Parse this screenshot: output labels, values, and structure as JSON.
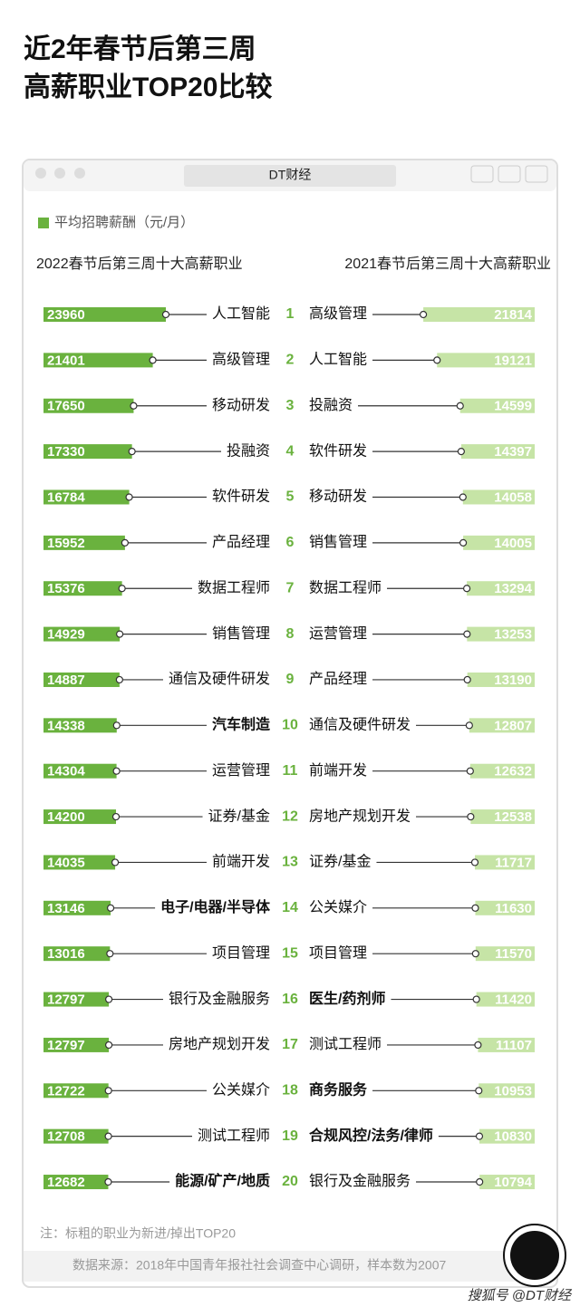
{
  "chart_data": {
    "type": "butterfly",
    "title": [
      "近2年春节后第三周",
      "高薪职业TOP20比较"
    ],
    "window_title": "DT财经",
    "legend": "平均招聘薪酬（元/月）",
    "categories": [
      "1",
      "2",
      "3",
      "4",
      "5",
      "6",
      "7",
      "8",
      "9",
      "10",
      "11",
      "12",
      "13",
      "14",
      "15",
      "16",
      "17",
      "18",
      "19",
      "20"
    ],
    "series": [
      {
        "name": "2022春节后第三周十大高薪职业",
        "color": "#6ab23e",
        "labels": [
          "人工智能",
          "高级管理",
          "移动研发",
          "投融资",
          "软件研发",
          "产品经理",
          "数据工程师",
          "销售管理",
          "通信及硬件研发",
          "汽车制造",
          "运营管理",
          "证券/基金",
          "前端开发",
          "电子/电器/半导体",
          "项目管理",
          "银行及金融服务",
          "房地产规划开发",
          "公关媒介",
          "测试工程师",
          "能源/矿产/地质"
        ],
        "values": [
          23960,
          21401,
          17650,
          17330,
          16784,
          15952,
          15376,
          14929,
          14887,
          14338,
          14304,
          14200,
          14035,
          13146,
          13016,
          12797,
          12797,
          12722,
          12708,
          12682
        ],
        "bold": [
          false,
          false,
          false,
          false,
          false,
          false,
          false,
          false,
          false,
          true,
          false,
          false,
          false,
          true,
          false,
          false,
          false,
          false,
          false,
          true
        ]
      },
      {
        "name": "2021春节后第三周十大高薪职业",
        "color": "#c6e4a6",
        "labels": [
          "高级管理",
          "人工智能",
          "投融资",
          "软件研发",
          "移动研发",
          "销售管理",
          "数据工程师",
          "运营管理",
          "产品经理",
          "通信及硬件研发",
          "前端开发",
          "房地产规划开发",
          "证券/基金",
          "公关媒介",
          "项目管理",
          "医生/药剂师",
          "测试工程师",
          "商务服务",
          "合规风控/法务/律师",
          "银行及金融服务"
        ],
        "values": [
          21814,
          19121,
          14599,
          14397,
          14058,
          14005,
          13294,
          13253,
          13190,
          12807,
          12632,
          12538,
          11717,
          11630,
          11570,
          11420,
          11107,
          10953,
          10830,
          10794
        ],
        "bold": [
          false,
          false,
          false,
          false,
          false,
          false,
          false,
          false,
          false,
          false,
          false,
          false,
          false,
          false,
          false,
          true,
          false,
          true,
          true,
          false
        ]
      }
    ],
    "rank_color": "#6ab23e",
    "note": "注：标粗的职业为新进/掉出TOP20",
    "source": "数据来源：2018年中国青年报社社会调查中心调研，样本数为2007",
    "watermark": "搜狐号 @DT财经"
  }
}
